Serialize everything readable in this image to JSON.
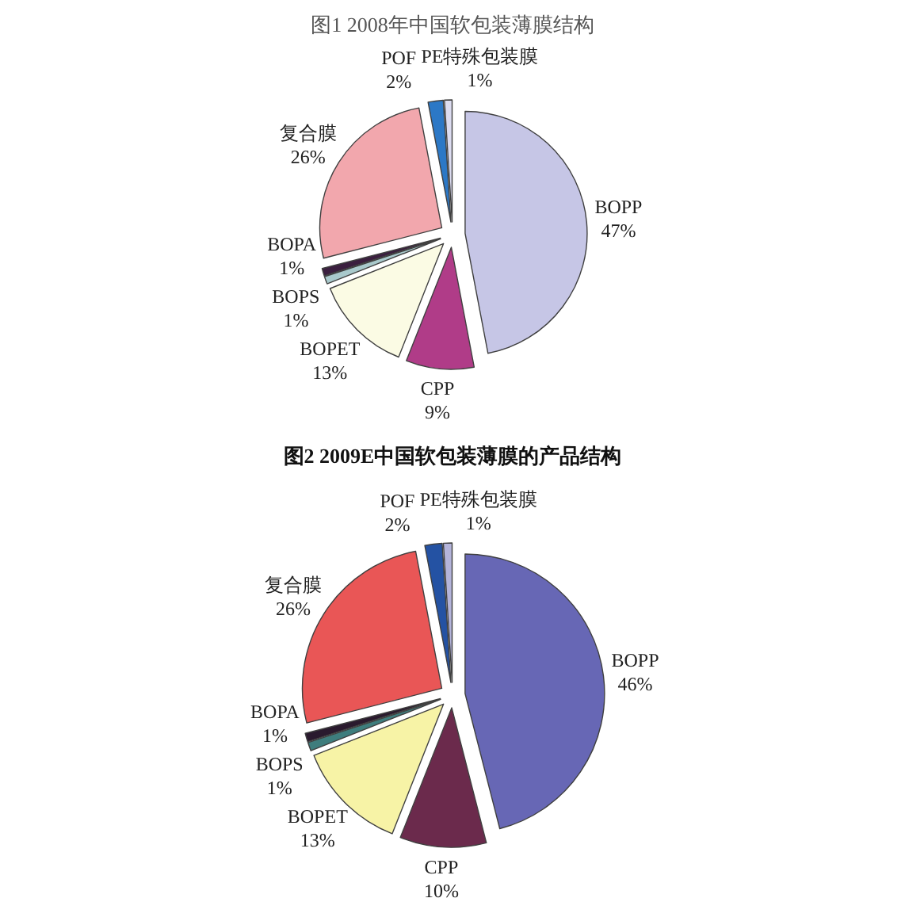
{
  "chart_data": [
    {
      "type": "pie",
      "title": "图1 2008年中国软包装薄膜结构",
      "categories": [
        "BOPP",
        "CPP",
        "BOPET",
        "BOPS",
        "BOPA",
        "复合膜",
        "POF",
        "PE特殊包装膜"
      ],
      "values": [
        47,
        9,
        13,
        1,
        1,
        26,
        2,
        1
      ],
      "value_labels": [
        "47%",
        "9%",
        "13%",
        "1%",
        "1%",
        "26%",
        "2%",
        "1%"
      ],
      "colors": [
        "#c6c6e6",
        "#b03c88",
        "#fbfbe4",
        "#a9c9cc",
        "#3b1f3f",
        "#f2a7ad",
        "#2c78c6",
        "#dcdcf0"
      ]
    },
    {
      "type": "pie",
      "title": "图2 2009E中国软包装薄膜的产品结构",
      "categories": [
        "BOPP",
        "CPP",
        "BOPET",
        "BOPS",
        "BOPA",
        "复合膜",
        "POF",
        "PE特殊包装膜"
      ],
      "values": [
        46,
        10,
        13,
        1,
        1,
        26,
        2,
        1
      ],
      "value_labels": [
        "46%",
        "10%",
        "13%",
        "1%",
        "1%",
        "26%",
        "2%",
        "1%"
      ],
      "colors": [
        "#6767b5",
        "#6b2a4c",
        "#f7f3a6",
        "#3e7d7d",
        "#2a1a2e",
        "#e95656",
        "#2452a3",
        "#b4b4da"
      ]
    }
  ]
}
